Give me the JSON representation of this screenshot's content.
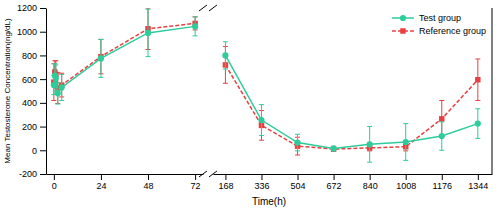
{
  "chart_data": [
    {
      "type": "line",
      "x_label": "Time(h)",
      "y_label": "Mean Testosterone Concentration(ng/dL)",
      "x": [
        0,
        0.5,
        1,
        2,
        4,
        24,
        48,
        72
      ],
      "series": [
        {
          "color": "#2ECC9A",
          "marker": "circle",
          "line_style": "solid",
          "values": [
            550,
            630,
            610,
            480,
            530,
            775,
            990,
            1045
          ],
          "errors": [
            80,
            100,
            110,
            90,
            110,
            160,
            200,
            80
          ]
        },
        {
          "color": "#E84040",
          "marker": "square",
          "line_style": "dashed",
          "values": [
            575,
            660,
            640,
            525,
            550,
            790,
            1025,
            1070
          ],
          "errors": [
            155,
            95,
            115,
            130,
            100,
            145,
            175,
            55
          ]
        }
      ],
      "xlim": [
        -4,
        76
      ],
      "xticks": [
        0,
        24,
        48,
        72
      ],
      "ylim": [
        -200,
        1200
      ],
      "yticks": [
        -200,
        0,
        200,
        400,
        600,
        800,
        1000,
        1200
      ]
    },
    {
      "type": "line",
      "x": [
        168,
        336,
        504,
        672,
        840,
        1008,
        1176,
        1344
      ],
      "series": [
        {
          "name": "Test group",
          "color": "#2ECC9A",
          "marker": "circle",
          "line_style": "solid",
          "values": [
            800,
            255,
            65,
            15,
            50,
            70,
            120,
            225
          ],
          "errors": [
            115,
            130,
            70,
            20,
            150,
            155,
            120,
            125
          ]
        },
        {
          "name": "Reference group",
          "color": "#E84040",
          "marker": "square",
          "line_style": "dashed",
          "values": [
            720,
            210,
            35,
            10,
            20,
            30,
            265,
            595
          ],
          "errors": [
            155,
            125,
            75,
            15,
            25,
            35,
            155,
            175
          ]
        }
      ],
      "xlim": [
        110,
        1410
      ],
      "xticks": [
        168,
        336,
        504,
        672,
        840,
        1008,
        1176,
        1344
      ],
      "ylim": [
        -200,
        1200
      ],
      "legend": "upper right",
      "tick_labels": "x"
    }
  ]
}
